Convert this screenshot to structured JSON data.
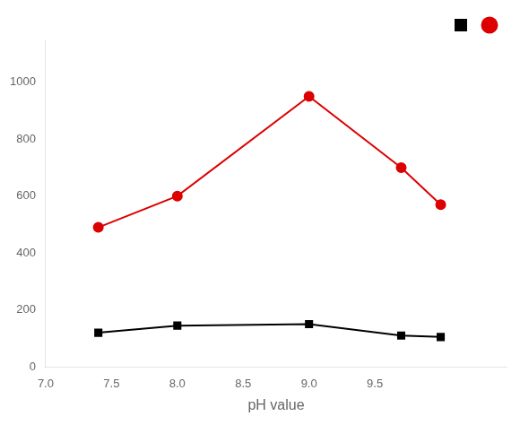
{
  "chart_data": {
    "type": "line",
    "xlabel": "pH value",
    "series": [
      {
        "color": "#000000",
        "marker": "square",
        "x": [
          7.4,
          8.0,
          9.0,
          9.7,
          10.0
        ],
        "values": [
          120,
          145,
          150,
          110,
          105
        ]
      },
      {
        "color": "#dd0000",
        "marker": "circle",
        "x": [
          7.4,
          8.0,
          9.0,
          9.7,
          10.0
        ],
        "values": [
          490,
          600,
          950,
          700,
          570
        ]
      }
    ],
    "xlim": [
      7.0,
      10.5
    ],
    "xticks": [
      {
        "value": 7.0,
        "label": "7.0"
      },
      {
        "value": 7.5,
        "label": "7.5"
      },
      {
        "value": 8.0,
        "label": "8.0"
      },
      {
        "value": 8.5,
        "label": "8.5"
      },
      {
        "value": 9.0,
        "label": "9.0"
      },
      {
        "value": 9.5,
        "label": "9.5"
      }
    ],
    "ylim": [
      0,
      1150
    ],
    "yticks": [
      0,
      200,
      400,
      600,
      800,
      1000
    ],
    "grid": false,
    "legend": "upper right"
  }
}
